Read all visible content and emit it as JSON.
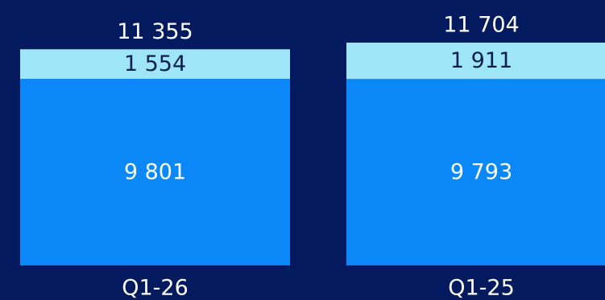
{
  "chart_data": {
    "type": "bar",
    "stacked": true,
    "categories": [
      "Q1-26",
      "Q1-25"
    ],
    "series": [
      {
        "values": [
          9801,
          9793
        ]
      },
      {
        "values": [
          1554,
          1911
        ]
      }
    ],
    "totals": [
      11355,
      11704
    ],
    "data_labels": {
      "bottom": [
        "9 801",
        "9 793"
      ],
      "top": [
        "1 554",
        "1 911"
      ],
      "totals": [
        "11 355",
        "11 704"
      ]
    },
    "colors": {
      "background": "#041a5e",
      "bottom_segment": "#0a88f7",
      "top_segment": "#9ee6f7",
      "bottom_label": "#ffffff",
      "top_label": "#0b1e4d",
      "total_label": "#ffffff",
      "category_label": "#ffffff"
    },
    "legend": "none",
    "grid": false,
    "ylim": [
      0,
      11704
    ]
  }
}
